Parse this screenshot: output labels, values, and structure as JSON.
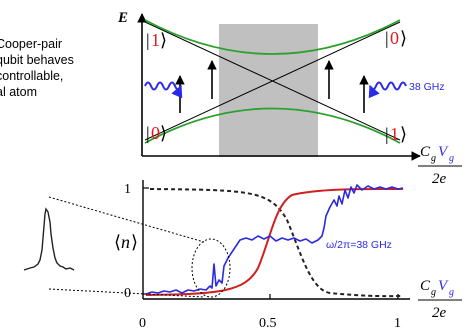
{
  "caption": {
    "lines": [
      "Cooper-pair",
      "qubit behaves",
      "controllable,",
      "al atom"
    ]
  },
  "energy_diagram": {
    "y_axis_label": "E",
    "state_labels": {
      "top_left": "1",
      "top_right": "0",
      "bottom_left": "0",
      "bottom_right": "1"
    },
    "microwave_label": "38 GHz",
    "x_axis_label": {
      "numerator_c": "C",
      "numerator_c_sub": "g",
      "numerator_v": "V",
      "numerator_v_sub": "g",
      "denominator": "2e"
    },
    "colors": {
      "state_label": "#e8191c",
      "microwave": "#2a2ae8",
      "energy_levels": "#2ca02c",
      "shaded_region": "#c0c0c0"
    }
  },
  "measurement_plot": {
    "y_axis_label": "n",
    "y_tick_labels": [
      "0",
      "1"
    ],
    "x_tick_labels": [
      "0",
      "0.5",
      "1"
    ],
    "annotation": "ω/2π=38 GHz",
    "x_axis_label": {
      "numerator_c": "C",
      "numerator_c_sub": "g",
      "numerator_v": "V",
      "numerator_v_sub": "g",
      "denominator": "2e"
    },
    "colors": {
      "sigmoid": "#d02020",
      "data_trace": "#2a2ae0",
      "complement_dashed": "#222222"
    }
  }
}
